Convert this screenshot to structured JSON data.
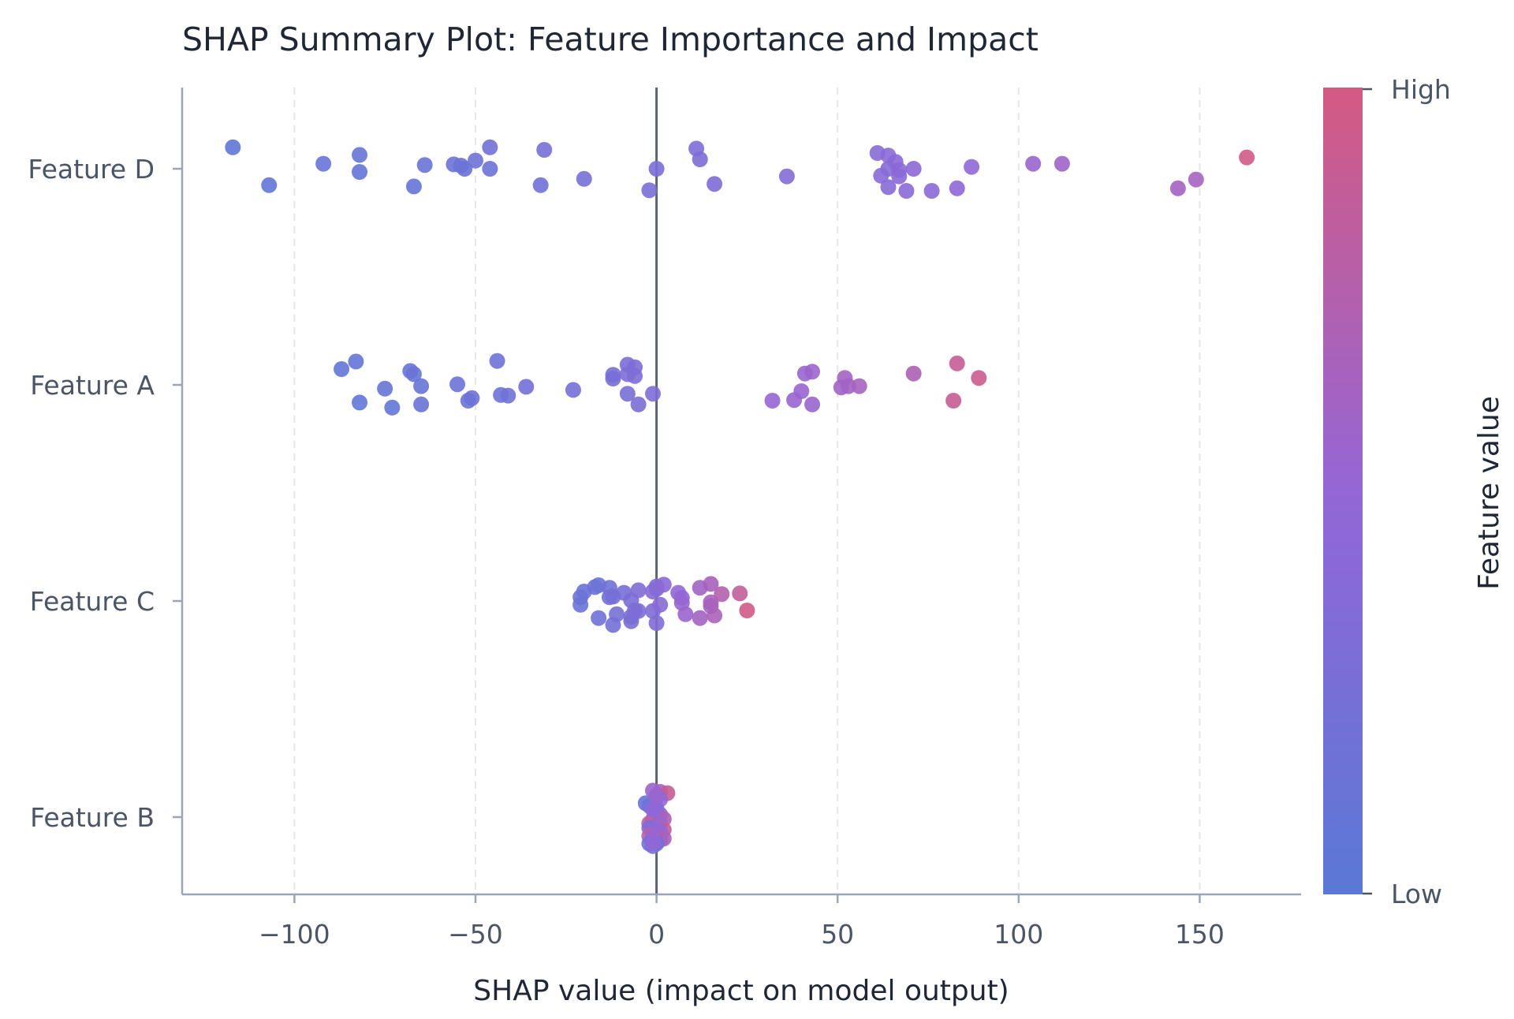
{
  "chart_data": {
    "type": "scatter",
    "title": "SHAP Summary Plot: Feature Importance and Impact",
    "xlabel": "SHAP value (impact on model output)",
    "ylabel": "",
    "xlim": [
      -131,
      178
    ],
    "x_ticks": [
      -100,
      -50,
      0,
      50,
      100,
      150
    ],
    "x_tick_labels": [
      "−100",
      "−50",
      "0",
      "50",
      "100",
      "150"
    ],
    "grid": "vertical dashed",
    "zero_line": true,
    "categories": [
      "Feature D",
      "Feature A",
      "Feature C",
      "Feature B"
    ],
    "colorbar": {
      "label": "Feature value",
      "high_label": "High",
      "low_label": "Low",
      "low_color": "#5a78d6",
      "mid_color": "#9466d6",
      "high_color": "#d45a82"
    },
    "series": [
      {
        "feature": "Feature D",
        "points": [
          [
            -117,
            0.34,
            0.05
          ],
          [
            -107,
            -0.26,
            0.07
          ],
          [
            -92,
            0.08,
            0.12
          ],
          [
            -82,
            0.22,
            0.1
          ],
          [
            -82,
            -0.05,
            0.09
          ],
          [
            -64,
            0.06,
            0.14
          ],
          [
            -67,
            -0.28,
            0.11
          ],
          [
            -56,
            0.07,
            0.16
          ],
          [
            -54,
            0.05,
            0.15
          ],
          [
            -53,
            0.0,
            0.13
          ],
          [
            -50,
            0.13,
            0.17
          ],
          [
            -46,
            0.0,
            0.16
          ],
          [
            -46,
            0.34,
            0.2
          ],
          [
            -31,
            0.3,
            0.22
          ],
          [
            -32,
            -0.26,
            0.19
          ],
          [
            -20,
            -0.16,
            0.23
          ],
          [
            0,
            0.0,
            0.27
          ],
          [
            -2,
            -0.34,
            0.25
          ],
          [
            11,
            0.32,
            0.31
          ],
          [
            12,
            0.15,
            0.3
          ],
          [
            16,
            -0.24,
            0.33
          ],
          [
            36,
            -0.12,
            0.36
          ],
          [
            61,
            0.25,
            0.38
          ],
          [
            64,
            0.21,
            0.4
          ],
          [
            66,
            0.11,
            0.41
          ],
          [
            64,
            0.0,
            0.39
          ],
          [
            67,
            -0.02,
            0.42
          ],
          [
            71,
            0.0,
            0.43
          ],
          [
            62,
            -0.11,
            0.4
          ],
          [
            67,
            -0.12,
            0.41
          ],
          [
            64,
            -0.29,
            0.39
          ],
          [
            69,
            -0.35,
            0.42
          ],
          [
            76,
            -0.35,
            0.44
          ],
          [
            83,
            -0.31,
            0.46
          ],
          [
            87,
            0.03,
            0.47
          ],
          [
            104,
            0.08,
            0.55
          ],
          [
            112,
            0.08,
            0.57
          ],
          [
            144,
            -0.31,
            0.62
          ],
          [
            149,
            -0.17,
            0.64
          ],
          [
            163,
            0.18,
            0.95
          ]
        ]
      },
      {
        "feature": "Feature A",
        "points": [
          [
            -87,
            0.25,
            0.08
          ],
          [
            -83,
            0.37,
            0.09
          ],
          [
            -82,
            -0.28,
            0.07
          ],
          [
            -75,
            -0.06,
            0.1
          ],
          [
            -73,
            -0.36,
            0.08
          ],
          [
            -68,
            0.22,
            0.11
          ],
          [
            -67,
            0.17,
            0.12
          ],
          [
            -65,
            -0.02,
            0.11
          ],
          [
            -65,
            -0.31,
            0.13
          ],
          [
            -55,
            0.01,
            0.14
          ],
          [
            -52,
            -0.25,
            0.15
          ],
          [
            -51,
            -0.21,
            0.16
          ],
          [
            -44,
            0.38,
            0.18
          ],
          [
            -43,
            -0.16,
            0.17
          ],
          [
            -41,
            -0.17,
            0.18
          ],
          [
            -36,
            -0.03,
            0.21
          ],
          [
            -23,
            -0.08,
            0.22
          ],
          [
            -12,
            0.16,
            0.27
          ],
          [
            -12,
            0.1,
            0.26
          ],
          [
            -8,
            0.32,
            0.28
          ],
          [
            -8,
            0.17,
            0.29
          ],
          [
            -6,
            0.28,
            0.3
          ],
          [
            -6,
            0.14,
            0.3
          ],
          [
            -8,
            -0.14,
            0.27
          ],
          [
            -5,
            -0.31,
            0.28
          ],
          [
            -1,
            -0.14,
            0.31
          ],
          [
            32,
            -0.25,
            0.52
          ],
          [
            38,
            -0.24,
            0.54
          ],
          [
            40,
            -0.1,
            0.53
          ],
          [
            41,
            0.18,
            0.55
          ],
          [
            43,
            0.21,
            0.56
          ],
          [
            43,
            -0.31,
            0.55
          ],
          [
            52,
            0.11,
            0.62
          ],
          [
            51,
            -0.04,
            0.6
          ],
          [
            53,
            -0.02,
            0.61
          ],
          [
            56,
            -0.02,
            0.63
          ],
          [
            71,
            0.18,
            0.7
          ],
          [
            82,
            -0.25,
            0.9
          ],
          [
            83,
            0.34,
            0.88
          ],
          [
            89,
            0.11,
            0.92
          ]
        ]
      },
      {
        "feature": "Feature C",
        "points": [
          [
            -21,
            0.06,
            0.12
          ],
          [
            -21,
            -0.06,
            0.14
          ],
          [
            -20,
            0.15,
            0.13
          ],
          [
            -17,
            0.22,
            0.16
          ],
          [
            -16,
            0.25,
            0.15
          ],
          [
            -16,
            -0.27,
            0.17
          ],
          [
            -13,
            0.06,
            0.2
          ],
          [
            -13,
            0.21,
            0.19
          ],
          [
            -12,
            0.07,
            0.22
          ],
          [
            -12,
            -0.38,
            0.21
          ],
          [
            -11,
            -0.21,
            0.23
          ],
          [
            -9,
            0.13,
            0.26
          ],
          [
            -7,
            0.01,
            0.28
          ],
          [
            -7,
            -0.25,
            0.25
          ],
          [
            -7,
            -0.32,
            0.27
          ],
          [
            -6,
            -0.15,
            0.3
          ],
          [
            -5,
            -0.16,
            0.31
          ],
          [
            -5,
            0.17,
            0.32
          ],
          [
            -1,
            0.15,
            0.35
          ],
          [
            0,
            0.19,
            0.36
          ],
          [
            0,
            0.23,
            0.37
          ],
          [
            -1,
            -0.16,
            0.33
          ],
          [
            0,
            -0.35,
            0.34
          ],
          [
            1,
            -0.06,
            0.4
          ],
          [
            2,
            0.26,
            0.42
          ],
          [
            6,
            0.13,
            0.48
          ],
          [
            7,
            0.05,
            0.5
          ],
          [
            7,
            -0.03,
            0.52
          ],
          [
            8,
            -0.21,
            0.55
          ],
          [
            12,
            0.21,
            0.6
          ],
          [
            12,
            -0.27,
            0.62
          ],
          [
            15,
            0.27,
            0.65
          ],
          [
            15,
            -0.02,
            0.63
          ],
          [
            15,
            -0.08,
            0.66
          ],
          [
            16,
            -0.23,
            0.68
          ],
          [
            18,
            0.11,
            0.75
          ],
          [
            23,
            0.12,
            0.85
          ],
          [
            25,
            -0.15,
            0.95
          ]
        ]
      },
      {
        "feature": "Feature B",
        "points": [
          [
            -3,
            0.22,
            0.1
          ],
          [
            -2,
            0.18,
            0.2
          ],
          [
            -1,
            0.42,
            0.55
          ],
          [
            1,
            0.4,
            0.6
          ],
          [
            3,
            0.38,
            0.9
          ],
          [
            0,
            0.32,
            0.45
          ],
          [
            1,
            0.28,
            0.5
          ],
          [
            0,
            0.13,
            0.4
          ],
          [
            0,
            0.08,
            0.45
          ],
          [
            1,
            0.04,
            0.35
          ],
          [
            2,
            -0.03,
            0.7
          ],
          [
            -1,
            -0.04,
            0.4
          ],
          [
            -2,
            -0.1,
            0.85
          ],
          [
            1,
            -0.1,
            0.55
          ],
          [
            -2,
            -0.17,
            0.3
          ],
          [
            2,
            -0.2,
            0.9
          ],
          [
            -1,
            -0.22,
            0.45
          ],
          [
            1,
            -0.22,
            0.5
          ],
          [
            -2,
            -0.3,
            0.8
          ],
          [
            -1,
            -0.32,
            0.6
          ],
          [
            0,
            -0.3,
            0.5
          ],
          [
            1,
            -0.36,
            0.75
          ],
          [
            2,
            -0.34,
            0.65
          ],
          [
            -1,
            -0.36,
            0.55
          ],
          [
            -2,
            -0.42,
            0.15
          ],
          [
            0,
            -0.42,
            0.2
          ],
          [
            -1,
            -0.46,
            0.25
          ],
          [
            -1,
            -0.4,
            0.5
          ],
          [
            0,
            0.34,
            0.55
          ],
          [
            -1,
            0.12,
            0.45
          ]
        ]
      }
    ]
  }
}
